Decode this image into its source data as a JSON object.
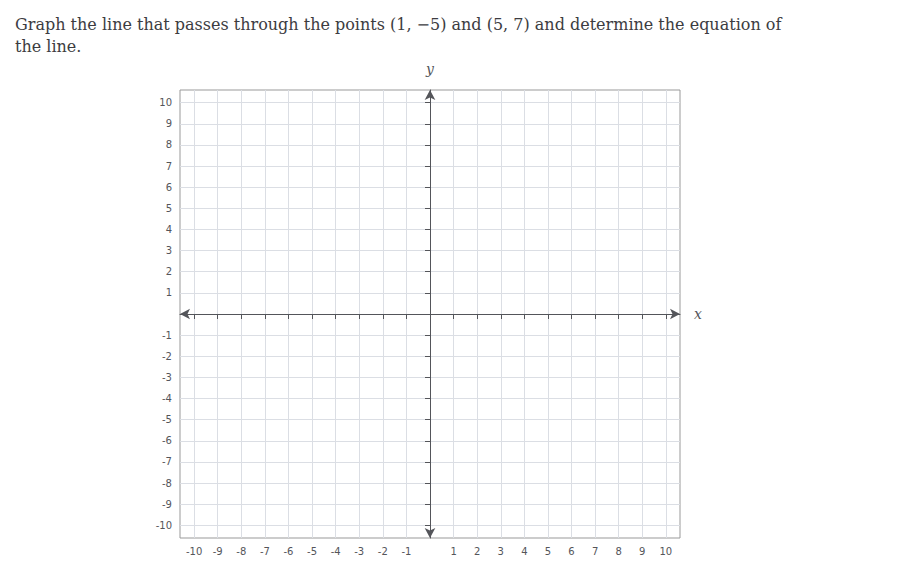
{
  "chart_data": {
    "type": "line",
    "title": "Graph the line that passes through the points (1, −5) and (5, 7) and determine the equation of\nthe line.",
    "xlabel": "x",
    "ylabel": "y",
    "xlim": [
      -10.6,
      10.6
    ],
    "ylim": [
      -10.6,
      10.6
    ],
    "xticks": [
      -10,
      -9,
      -8,
      -7,
      -6,
      -5,
      -4,
      -3,
      -2,
      -1,
      1,
      2,
      3,
      4,
      5,
      6,
      7,
      8,
      9,
      10
    ],
    "yticks": [
      -10,
      -9,
      -8,
      -7,
      -6,
      -5,
      -4,
      -3,
      -2,
      -1,
      1,
      2,
      3,
      4,
      5,
      6,
      7,
      8,
      9,
      10
    ],
    "grid": true
  }
}
